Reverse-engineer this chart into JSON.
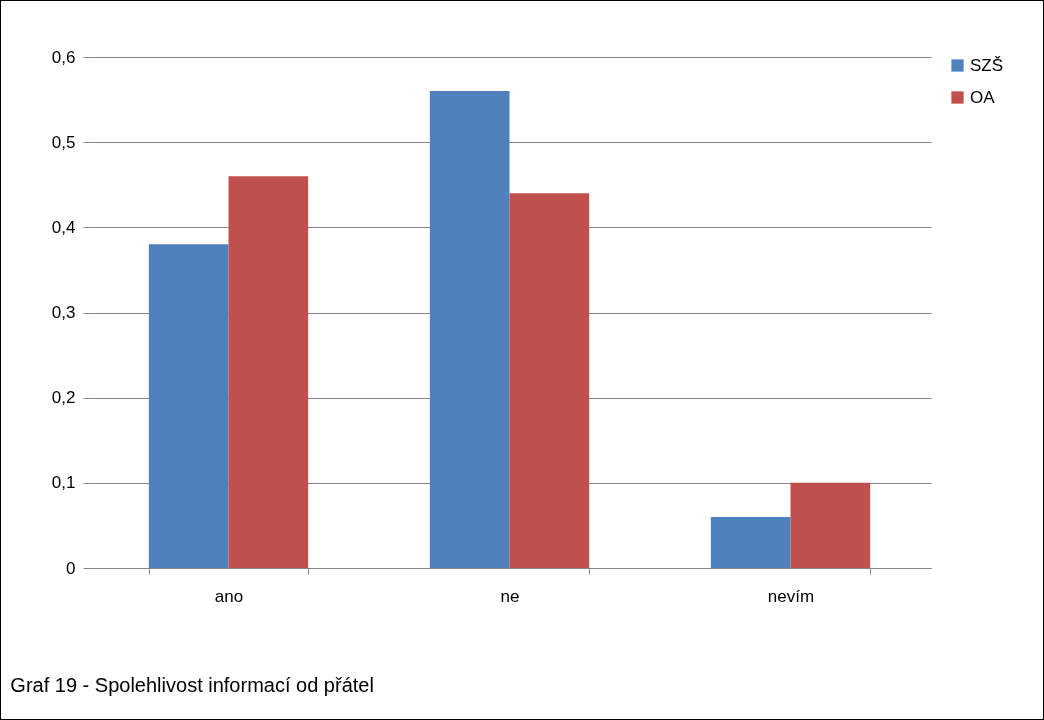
{
  "chart_data": {
    "type": "bar",
    "categories": [
      "ano",
      "ne",
      "nevím"
    ],
    "series": [
      {
        "name": "SZŠ",
        "color": "#4f81bd",
        "values": [
          0.38,
          0.56,
          0.06
        ]
      },
      {
        "name": "OA",
        "color": "#c0504d",
        "values": [
          0.46,
          0.44,
          0.1
        ]
      }
    ],
    "ylim": [
      0,
      0.6
    ],
    "yticks": [
      0,
      {
        "value": 0.1,
        "label": "0,1"
      },
      {
        "value": 0.2,
        "label": "0,2"
      },
      {
        "value": 0.3,
        "label": "0,3"
      },
      {
        "value": 0.4,
        "label": "0,4"
      },
      {
        "value": 0.5,
        "label": "0,5"
      },
      {
        "value": 0.6,
        "label": "0,6"
      }
    ],
    "grid": "y",
    "legend": "right",
    "annotations": [
      "Graf 19 - Spolehlivost informací od přátel"
    ]
  }
}
